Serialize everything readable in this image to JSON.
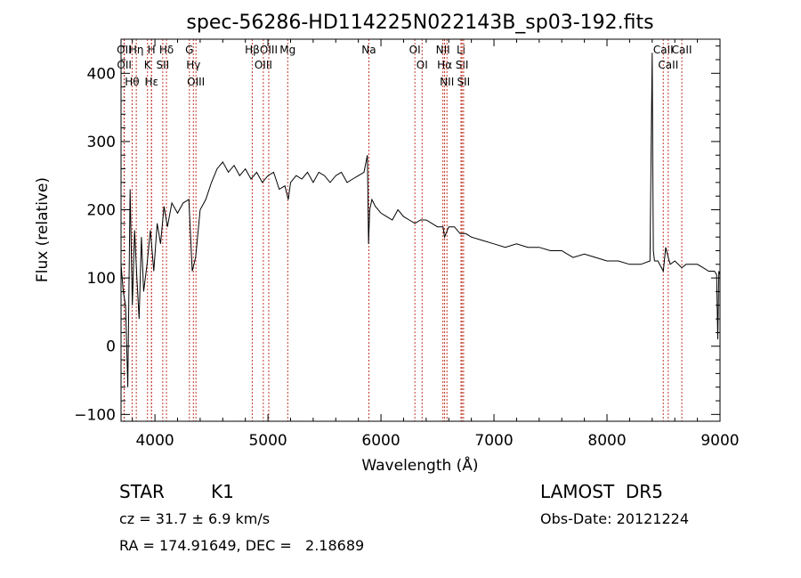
{
  "chart_data": {
    "type": "line",
    "title": "spec-56286-HD114225N022143B_sp03-192.fits",
    "xlabel": "Wavelength (Å)",
    "ylabel": "Flux (relative)",
    "xlim": [
      3700,
      9000
    ],
    "ylim": [
      -110,
      450
    ],
    "xticks": [
      4000,
      5000,
      6000,
      7000,
      8000,
      9000
    ],
    "yticks": [
      -100,
      0,
      100,
      200,
      300,
      400
    ],
    "grid": false,
    "series": [
      {
        "x": [
          3700,
          3720,
          3740,
          3760,
          3780,
          3800,
          3820,
          3840,
          3860,
          3880,
          3900,
          3930,
          3960,
          3990,
          4020,
          4050,
          4080,
          4110,
          4150,
          4200,
          4250,
          4300,
          4330,
          4360,
          4400,
          4450,
          4500,
          4550,
          4600,
          4650,
          4700,
          4750,
          4800,
          4850,
          4900,
          4950,
          5000,
          5050,
          5100,
          5150,
          5180,
          5200,
          5250,
          5300,
          5350,
          5400,
          5450,
          5500,
          5550,
          5600,
          5650,
          5700,
          5750,
          5800,
          5850,
          5880,
          5890,
          5900,
          5920,
          5950,
          6000,
          6050,
          6100,
          6150,
          6200,
          6250,
          6300,
          6350,
          6400,
          6450,
          6500,
          6550,
          6563,
          6600,
          6650,
          6700,
          6750,
          6800,
          6900,
          7000,
          7100,
          7200,
          7300,
          7400,
          7500,
          7600,
          7700,
          7800,
          7900,
          8000,
          8100,
          8200,
          8300,
          8380,
          8400,
          8405,
          8410,
          8420,
          8450,
          8498,
          8520,
          8542,
          8560,
          8600,
          8662,
          8700,
          8750,
          8800,
          8850,
          8900,
          8950,
          8970,
          8980,
          8990,
          9000
        ],
        "y": [
          120,
          80,
          60,
          -60,
          230,
          60,
          170,
          100,
          40,
          160,
          80,
          120,
          170,
          110,
          180,
          150,
          205,
          175,
          210,
          195,
          210,
          215,
          110,
          130,
          200,
          215,
          240,
          260,
          270,
          255,
          265,
          250,
          260,
          245,
          255,
          240,
          250,
          255,
          230,
          235,
          215,
          240,
          250,
          245,
          255,
          240,
          255,
          250,
          240,
          250,
          255,
          240,
          245,
          250,
          255,
          280,
          150,
          200,
          215,
          205,
          195,
          190,
          185,
          200,
          190,
          185,
          180,
          185,
          185,
          180,
          175,
          175,
          160,
          175,
          175,
          165,
          165,
          160,
          155,
          150,
          145,
          150,
          145,
          145,
          140,
          140,
          130,
          135,
          130,
          125,
          125,
          120,
          120,
          125,
          430,
          280,
          140,
          125,
          125,
          110,
          145,
          130,
          120,
          125,
          115,
          120,
          120,
          120,
          115,
          110,
          110,
          105,
          10,
          110,
          105
        ]
      }
    ],
    "lines": [
      {
        "label": "Hθ",
        "x": 3798
      },
      {
        "label": "OII",
        "x": 3727
      },
      {
        "label": "OII",
        "x": 3729
      },
      {
        "label": "Hη",
        "x": 3835
      },
      {
        "label": "K",
        "x": 3934
      },
      {
        "label": "H",
        "x": 3969
      },
      {
        "label": "Hε",
        "x": 3970
      },
      {
        "label": "Hδ",
        "x": 4102
      },
      {
        "label": "SII",
        "x": 4069
      },
      {
        "label": "OIII",
        "x": 4363
      },
      {
        "label": "Hγ",
        "x": 4340
      },
      {
        "label": "G",
        "x": 4305
      },
      {
        "label": "Hβ",
        "x": 4861
      },
      {
        "label": "OIII",
        "x": 4959
      },
      {
        "label": "OIII",
        "x": 5007
      },
      {
        "label": "Mg",
        "x": 5175
      },
      {
        "label": "Na",
        "x": 5893
      },
      {
        "label": "OI",
        "x": 6300
      },
      {
        "label": "OI",
        "x": 6364
      },
      {
        "label": "Hα",
        "x": 6563
      },
      {
        "label": "NII",
        "x": 6548
      },
      {
        "label": "NII",
        "x": 6584
      },
      {
        "label": "SII",
        "x": 6717
      },
      {
        "label": "Li",
        "x": 6708
      },
      {
        "label": "SII",
        "x": 6731
      },
      {
        "label": "CaII",
        "x": 8498
      },
      {
        "label": "CaII",
        "x": 8542
      },
      {
        "label": "CaII",
        "x": 8662
      }
    ]
  },
  "info": {
    "class_label": "STAR",
    "subclass_label": "K1",
    "cz_line": "cz = 31.7 ± 6.9 km/s",
    "radec_line": "RA = 174.91649, DEC =   2.18689",
    "survey_label": "LAMOST  DR5",
    "obs_date_line": "Obs-Date: 20121224"
  }
}
